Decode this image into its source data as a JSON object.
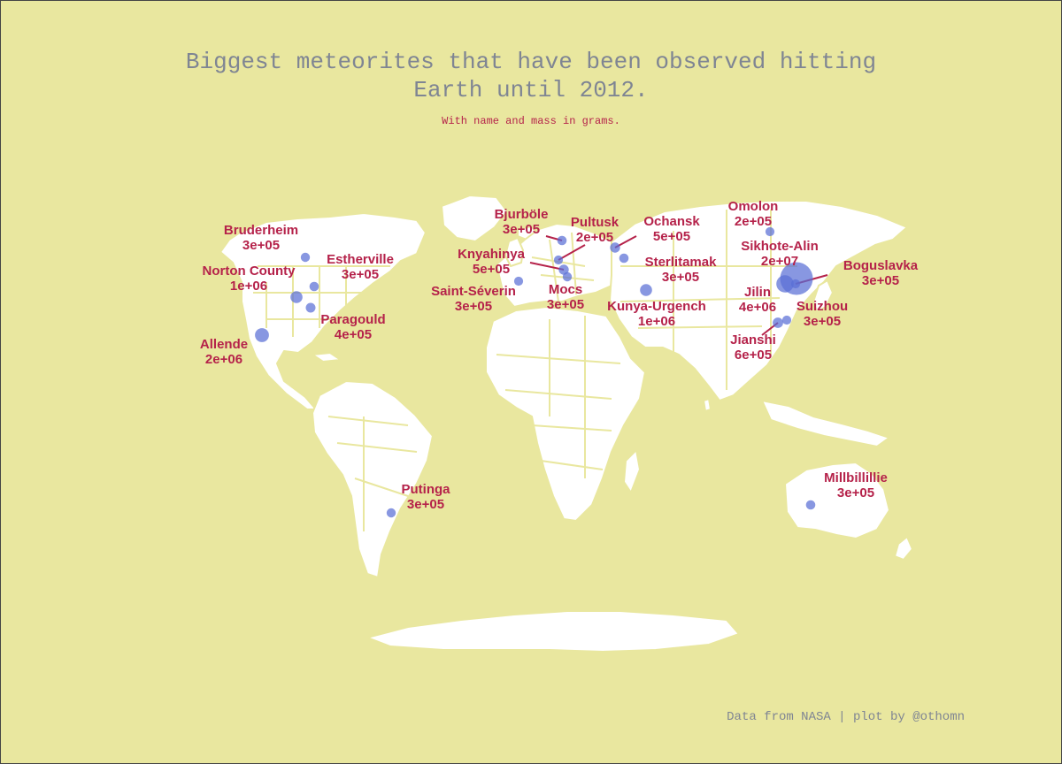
{
  "title_line1": "Biggest meteorites that have been observed hitting",
  "title_line2": "Earth until 2012.",
  "subtitle": "With name and mass in grams.",
  "caption": "Data from NASA | plot by @othomn",
  "colors": {
    "background": "#e9e79f",
    "land": "#ffffff",
    "borders": "#e9e79f",
    "points": "#5a6fd6",
    "labels": "#b5224a",
    "title": "#7f8593"
  },
  "meteorites": [
    {
      "name": "Bruderheim",
      "mass_label": "3e+05",
      "mass_g": 303000,
      "lon": -112.9,
      "lat": 53.9
    },
    {
      "name": "Norton County",
      "mass_label": "1e+06",
      "mass_g": 1100000,
      "lon": -99.9,
      "lat": 39.7
    },
    {
      "name": "Estherville",
      "mass_label": "3e+05",
      "mass_g": 320000,
      "lon": -94.8,
      "lat": 43.4
    },
    {
      "name": "Paragould",
      "mass_label": "4e+05",
      "mass_g": 408000,
      "lon": -90.5,
      "lat": 36.1
    },
    {
      "name": "Allende",
      "mass_label": "2e+06",
      "mass_g": 2000000,
      "lon": -105.3,
      "lat": 26.97
    },
    {
      "name": "Putinga",
      "mass_label": "3e+05",
      "mass_g": 300000,
      "lon": -52.0,
      "lat": -29.0
    },
    {
      "name": "Bjurböle",
      "mass_label": "3e+05",
      "mass_g": 330000,
      "lon": 25.8,
      "lat": 60.4
    },
    {
      "name": "Pultusk",
      "mass_label": "2e+05",
      "mass_g": 250000,
      "lon": 21.2,
      "lat": 52.8
    },
    {
      "name": "Knyahinya",
      "mass_label": "5e+05",
      "mass_g": 500000,
      "lon": 22.5,
      "lat": 48.9
    },
    {
      "name": "Saint-Séverin",
      "mass_label": "3e+05",
      "mass_g": 271000,
      "lon": 0.2,
      "lat": 45.3
    },
    {
      "name": "Mocs",
      "mass_label": "3e+05",
      "mass_g": 300000,
      "lon": 24.0,
      "lat": 46.8
    },
    {
      "name": "Ochansk",
      "mass_label": "5e+05",
      "mass_g": 500000,
      "lon": 55.3,
      "lat": 57.8
    },
    {
      "name": "Sterlitamak",
      "mass_label": "3e+05",
      "mass_g": 325000,
      "lon": 55.98,
      "lat": 53.7
    },
    {
      "name": "Kunya-Urgench",
      "mass_label": "1e+06",
      "mass_g": 1100000,
      "lon": 59.2,
      "lat": 42.25
    },
    {
      "name": "Omolon",
      "mass_label": "2e+05",
      "mass_g": 250000,
      "lon": 161.8,
      "lat": 64.0
    },
    {
      "name": "Sikhote-Alin",
      "mass_label": "2e+07",
      "mass_g": 23000000,
      "lon": 134.65,
      "lat": 46.2
    },
    {
      "name": "Boguslavka",
      "mass_label": "3e+05",
      "mass_g": 256000,
      "lon": 131.6,
      "lat": 44.6
    },
    {
      "name": "Jilin",
      "mass_label": "4e+06",
      "mass_g": 4000000,
      "lon": 126.2,
      "lat": 44.05
    },
    {
      "name": "Suizhou",
      "mass_label": "3e+05",
      "mass_g": 270000,
      "lon": 113.5,
      "lat": 31.6
    },
    {
      "name": "Jianshi",
      "mass_label": "6e+05",
      "mass_g": 600000,
      "lon": 109.9,
      "lat": 30.8
    },
    {
      "name": "Millbillillie",
      "mass_label": "3e+05",
      "mass_g": 330000,
      "lon": 120.4,
      "lat": -26.5
    }
  ]
}
